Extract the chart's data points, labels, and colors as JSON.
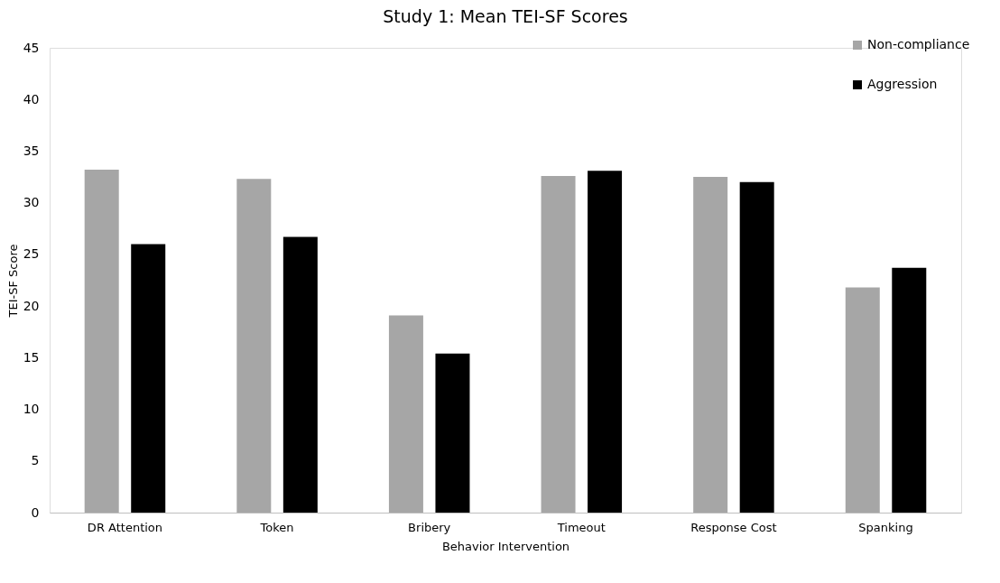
{
  "chart_data": {
    "type": "bar",
    "title": "Study 1: Mean TEI-SF Scores",
    "xlabel": "Behavior Intervention",
    "ylabel": "TEI-SF Score",
    "categories": [
      "DR Attention",
      "Token",
      "Bribery",
      "Timeout",
      "Response Cost",
      "Spanking"
    ],
    "series": [
      {
        "name": "Non-compliance",
        "color": "#a6a6a6",
        "values": [
          33.2,
          32.3,
          19.1,
          32.6,
          32.5,
          21.8
        ]
      },
      {
        "name": "Aggression",
        "color": "#000000",
        "values": [
          26.0,
          26.7,
          15.4,
          33.1,
          32.0,
          23.7
        ]
      }
    ],
    "ylim": [
      0,
      45
    ],
    "yticks": [
      0,
      5,
      10,
      15,
      20,
      25,
      30,
      35,
      40,
      45
    ],
    "grid": false,
    "legend": "top right"
  }
}
